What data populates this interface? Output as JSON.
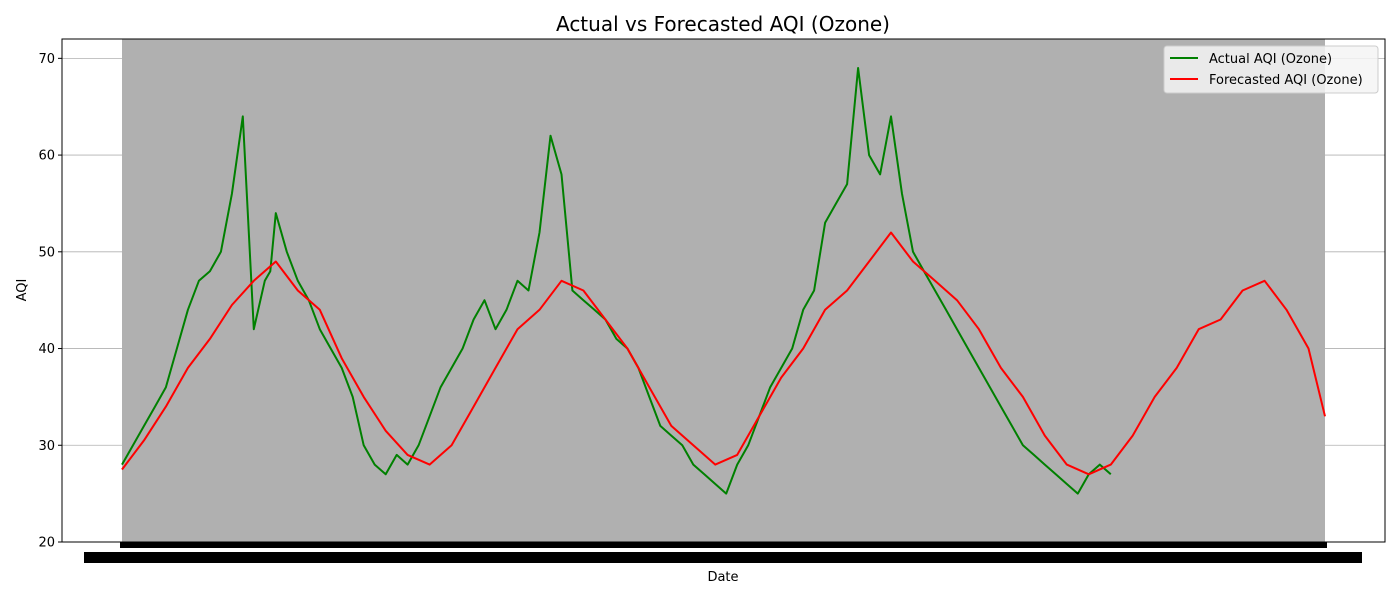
{
  "chart_data": {
    "type": "line",
    "title": "Actual vs Forecasted AQI (Ozone)",
    "xlabel": "Date",
    "ylabel": "AQI",
    "ylim": [
      20,
      72
    ],
    "yticks": [
      20,
      30,
      40,
      50,
      60,
      70
    ],
    "x_index_range": [
      0,
      1095
    ],
    "x_tick_labels_note": "",
    "grid": "horizontal",
    "legend_position": "top-right",
    "colors": {
      "actual": "#008000",
      "forecast": "#ff0000",
      "shade": "#b0b0b0",
      "grid": "#b0b0b0"
    },
    "series": [
      {
        "name": "Actual AQI (Ozone)",
        "key": "actual",
        "x": [
          0,
          10,
          20,
          30,
          40,
          50,
          60,
          70,
          80,
          90,
          100,
          110,
          120,
          130,
          135,
          140,
          150,
          160,
          170,
          180,
          190,
          200,
          210,
          220,
          230,
          240,
          250,
          260,
          270,
          280,
          290,
          300,
          310,
          320,
          330,
          340,
          350,
          360,
          370,
          380,
          390,
          400,
          410,
          420,
          430,
          440,
          450,
          460,
          470,
          480,
          490,
          500,
          510,
          520,
          530,
          540,
          550,
          560,
          570,
          580,
          590,
          600,
          610,
          620,
          630,
          640,
          650,
          660,
          670,
          680,
          690,
          700,
          710,
          720,
          730,
          740,
          750,
          760,
          770,
          780,
          790,
          800,
          810,
          820,
          830,
          840,
          850,
          860,
          870,
          880,
          890,
          900
        ],
        "y": [
          28,
          30,
          32,
          34,
          36,
          40,
          44,
          47,
          48,
          50,
          56,
          64,
          42,
          47,
          48,
          54,
          50,
          47,
          45,
          42,
          40,
          38,
          35,
          30,
          28,
          27,
          29,
          28,
          30,
          33,
          36,
          38,
          40,
          43,
          45,
          42,
          44,
          47,
          46,
          52,
          62,
          58,
          46,
          45,
          44,
          43,
          41,
          40,
          38,
          35,
          32,
          31,
          30,
          28,
          27,
          26,
          25,
          28,
          30,
          33,
          36,
          38,
          40,
          44,
          46,
          53,
          55,
          57,
          69,
          60,
          58,
          64,
          56,
          50,
          48,
          46,
          44,
          42,
          40,
          38,
          36,
          34,
          32,
          30,
          29,
          28,
          27,
          26,
          25,
          27,
          28,
          27
        ]
      },
      {
        "name": "Forecasted AQI (Ozone)",
        "key": "forecast",
        "x": [
          0,
          20,
          40,
          60,
          80,
          100,
          120,
          140,
          160,
          180,
          200,
          220,
          240,
          260,
          280,
          300,
          320,
          340,
          360,
          380,
          400,
          420,
          440,
          460,
          480,
          500,
          520,
          540,
          560,
          580,
          600,
          620,
          640,
          660,
          680,
          700,
          720,
          740,
          760,
          780,
          800,
          820,
          840,
          860,
          880,
          900,
          920,
          940,
          960,
          980,
          1000,
          1020,
          1040,
          1060,
          1080,
          1095
        ],
        "y": [
          27.5,
          30.5,
          34,
          38,
          41,
          44.5,
          47,
          49,
          46,
          44,
          39,
          35,
          31.5,
          29,
          28,
          30,
          34,
          38,
          42,
          44,
          47,
          46,
          43,
          40,
          36,
          32,
          30,
          28,
          29,
          33,
          37,
          40,
          44,
          46,
          49,
          52,
          49,
          47,
          45,
          42,
          38,
          35,
          31,
          28,
          27,
          28,
          31,
          35,
          38,
          42,
          43,
          46,
          47,
          44,
          40,
          33
        ]
      }
    ]
  }
}
